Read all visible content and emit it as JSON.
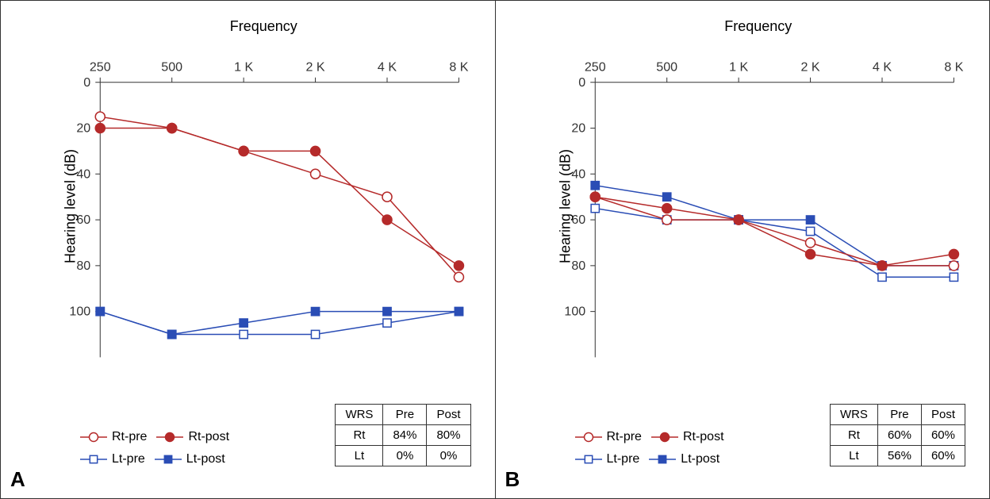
{
  "global": {
    "x_categories": [
      "250",
      "500",
      "1 K",
      "2 K",
      "4 K",
      "8 K"
    ],
    "x_title": "Frequency",
    "y_title": "Hearing level (dB)",
    "y_ticks": [
      0,
      20,
      40,
      60,
      80,
      100
    ],
    "ylim": [
      0,
      120
    ],
    "grid_color": "#e0e0e0",
    "tick_fontsize": 16,
    "title_fontsize": 18,
    "line_width": 1.5,
    "marker_size": 6,
    "colors": {
      "rt": "#b52a2a",
      "lt": "#2a4db5",
      "axis": "#333333",
      "bg": "#ffffff"
    },
    "legend": {
      "items": [
        {
          "key": "rt_pre",
          "label": "Rt-pre",
          "color": "#b52a2a",
          "shape": "circle",
          "filled": false
        },
        {
          "key": "rt_post",
          "label": "Rt-post",
          "color": "#b52a2a",
          "shape": "circle",
          "filled": true
        },
        {
          "key": "lt_pre",
          "label": "Lt-pre",
          "color": "#2a4db5",
          "shape": "square",
          "filled": false
        },
        {
          "key": "lt_post",
          "label": "Lt-post",
          "color": "#2a4db5",
          "shape": "square",
          "filled": true
        }
      ]
    }
  },
  "panels": [
    {
      "label": "A",
      "series": {
        "rt_pre": {
          "values": [
            15,
            20,
            30,
            40,
            50,
            85
          ],
          "color": "#b52a2a",
          "shape": "circle",
          "filled": false
        },
        "rt_post": {
          "values": [
            20,
            20,
            30,
            30,
            60,
            80
          ],
          "color": "#b52a2a",
          "shape": "circle",
          "filled": true
        },
        "lt_pre": {
          "values": [
            100,
            110,
            110,
            110,
            105,
            100
          ],
          "color": "#2a4db5",
          "shape": "square",
          "filled": false
        },
        "lt_post": {
          "values": [
            100,
            110,
            105,
            100,
            100,
            100
          ],
          "color": "#2a4db5",
          "shape": "square",
          "filled": true
        }
      },
      "wrs": {
        "header": [
          "WRS",
          "Pre",
          "Post"
        ],
        "rows": [
          [
            "Rt",
            "84%",
            "80%"
          ],
          [
            "Lt",
            "0%",
            "0%"
          ]
        ]
      }
    },
    {
      "label": "B",
      "series": {
        "rt_pre": {
          "values": [
            50,
            60,
            60,
            70,
            80,
            80
          ],
          "color": "#b52a2a",
          "shape": "circle",
          "filled": false
        },
        "rt_post": {
          "values": [
            50,
            55,
            60,
            75,
            80,
            75
          ],
          "color": "#b52a2a",
          "shape": "circle",
          "filled": true
        },
        "lt_pre": {
          "values": [
            55,
            60,
            60,
            65,
            85,
            85
          ],
          "color": "#2a4db5",
          "shape": "square",
          "filled": false
        },
        "lt_post": {
          "values": [
            45,
            50,
            60,
            60,
            80,
            80
          ],
          "color": "#2a4db5",
          "shape": "square",
          "filled": true
        }
      },
      "wrs": {
        "header": [
          "WRS",
          "Pre",
          "Post"
        ],
        "rows": [
          [
            "Rt",
            "60%",
            "60%"
          ],
          [
            "Lt",
            "56%",
            "60%"
          ]
        ]
      }
    }
  ]
}
